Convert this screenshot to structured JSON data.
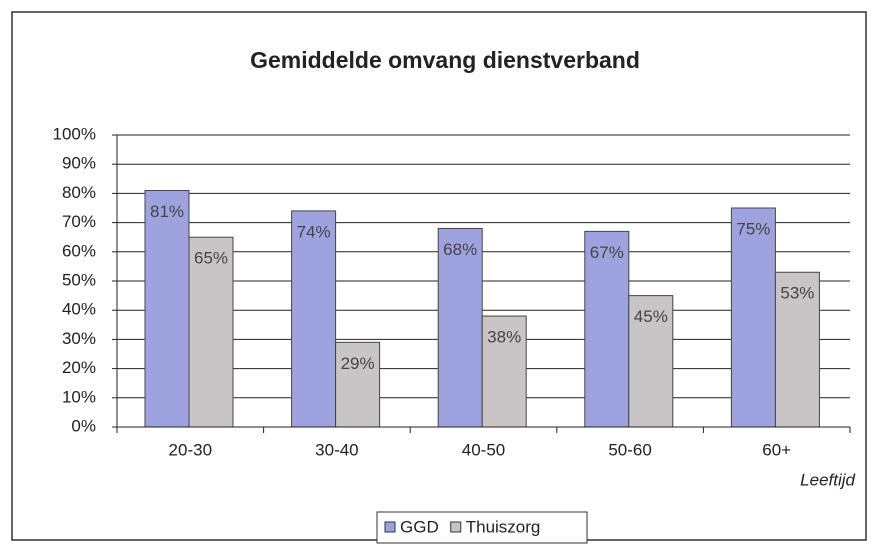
{
  "chart_data": {
    "type": "bar",
    "title": "Gemiddelde omvang dienstverband",
    "x_label": "Leeftijd",
    "categories": [
      "20-30",
      "30-40",
      "40-50",
      "50-60",
      "60+"
    ],
    "series": [
      {
        "name": "GGD",
        "color": "#9ea3e0",
        "values": [
          81,
          74,
          68,
          67,
          75
        ],
        "value_labels": [
          "81%",
          "74%",
          "68%",
          "67%",
          "75%"
        ]
      },
      {
        "name": "Thuiszorg",
        "color": "#c9c5c6",
        "values": [
          65,
          29,
          38,
          45,
          53
        ],
        "value_labels": [
          "65%",
          "29%",
          "38%",
          "45%",
          "53%"
        ]
      }
    ],
    "ylim": [
      0,
      100
    ],
    "yticks": [
      {
        "value": 0,
        "label": "0%"
      },
      {
        "value": 10,
        "label": "10%"
      },
      {
        "value": 20,
        "label": "20%"
      },
      {
        "value": 30,
        "label": "30%"
      },
      {
        "value": 40,
        "label": "40%"
      },
      {
        "value": 50,
        "label": "50%"
      },
      {
        "value": 60,
        "label": "60%"
      },
      {
        "value": 70,
        "label": "70%"
      },
      {
        "value": 80,
        "label": "80%"
      },
      {
        "value": 90,
        "label": "90%"
      },
      {
        "value": 100,
        "label": "100%"
      }
    ],
    "grid": true,
    "legend": "bottom"
  }
}
